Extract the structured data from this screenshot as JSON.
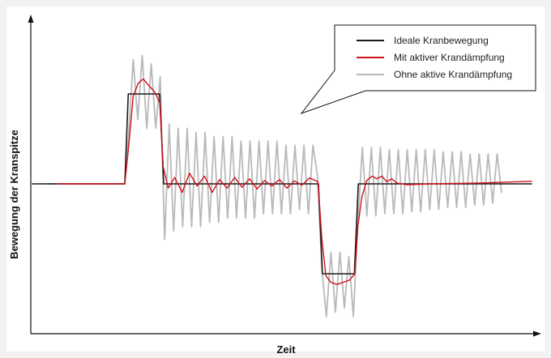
{
  "chart_data": {
    "type": "line",
    "title": "",
    "xlabel": "Zeit",
    "ylabel": "Bewegung der Kranspitze",
    "xlim": [
      0,
      100
    ],
    "ylim": [
      -3.5,
      3.5
    ],
    "grid": false,
    "legend_position": "top-right",
    "series": [
      {
        "name": "Ideale Kranbewegung",
        "color": "#1a1a1a",
        "x": [
          0,
          18.5,
          19.2,
          25.5,
          26.3,
          57.3,
          58.1,
          64.5,
          65.3,
          100
        ],
        "y": [
          0,
          0,
          2.1,
          2.1,
          0,
          0,
          -2.1,
          -2.1,
          0,
          0
        ]
      },
      {
        "name": "Mit aktiver Krandämpfung",
        "color": "#d0111b",
        "x": [
          5,
          18.5,
          19.3,
          20.2,
          21.2,
          22.2,
          23.3,
          24.5,
          25.5,
          26.2,
          27.2,
          28.5,
          30,
          31.5,
          33,
          34.5,
          36,
          37.5,
          39,
          40.5,
          42,
          43.5,
          45,
          46.5,
          48,
          49.5,
          51,
          52.5,
          54,
          55.5,
          57.2,
          58,
          58.8,
          59.8,
          61,
          62.2,
          63.5,
          64.6,
          65.2,
          66,
          67,
          68,
          69,
          70,
          71,
          72,
          73,
          75,
          80,
          90,
          100
        ],
        "y": [
          0,
          0,
          0.9,
          2.05,
          2.35,
          2.45,
          2.3,
          2.15,
          1.9,
          0.4,
          -0.1,
          0.15,
          -0.2,
          0.25,
          -0.05,
          0.18,
          -0.2,
          0.1,
          -0.1,
          0.15,
          -0.08,
          0.12,
          -0.12,
          0.08,
          -0.05,
          0.1,
          -0.1,
          0.07,
          -0.03,
          0.14,
          0.05,
          -1.3,
          -2.15,
          -2.3,
          -2.35,
          -2.3,
          -2.25,
          -2.1,
          -1.0,
          -0.3,
          0.08,
          0.18,
          0.12,
          0.18,
          0.05,
          0.12,
          0.02,
          -0.02,
          0.0,
          0.02,
          0.06
        ]
      },
      {
        "name": "Ohne aktive Krandämpfung",
        "color": "#b9b9b9",
        "x": [
          3,
          18.5,
          19.3,
          20.2,
          21.1,
          22,
          22.9,
          23.8,
          24.7,
          25.6,
          26.5,
          27.4,
          28.3,
          29.2,
          30.1,
          31,
          31.9,
          32.8,
          33.7,
          34.6,
          35.5,
          36.4,
          37.3,
          38.2,
          39.1,
          40,
          40.9,
          41.8,
          42.7,
          43.6,
          44.5,
          45.4,
          46.3,
          47.2,
          48.1,
          49,
          49.9,
          50.8,
          51.7,
          52.6,
          53.5,
          54.4,
          55.3,
          56.2,
          57.1,
          58,
          58.9,
          59.8,
          60.7,
          61.6,
          62.5,
          63.4,
          64.3,
          65.2,
          66.1,
          67,
          67.9,
          68.8,
          69.7,
          70.6,
          71.5,
          72.4,
          73.3,
          74.2,
          75.1,
          76,
          76.9,
          77.8,
          78.7,
          79.6,
          80.5,
          81.4,
          82.3,
          83.2,
          84.1,
          85,
          85.9,
          86.8,
          87.7,
          88.6,
          89.5,
          90.4,
          91.3,
          92.2,
          93.1,
          94
        ],
        "y": [
          0,
          0,
          1.2,
          2.9,
          1.5,
          3.0,
          1.3,
          2.8,
          1.3,
          2.5,
          -1.3,
          1.4,
          -1.1,
          1.3,
          -1.0,
          1.3,
          -1.0,
          1.2,
          -1.0,
          1.2,
          -0.9,
          1.1,
          -0.9,
          1.1,
          -0.8,
          1.1,
          -0.8,
          1.0,
          -0.8,
          1.0,
          -0.8,
          1.0,
          -0.7,
          1.0,
          -0.7,
          1.0,
          -0.7,
          0.9,
          -0.7,
          0.9,
          -0.6,
          0.9,
          -0.7,
          0.9,
          0.2,
          -2.0,
          -3.1,
          -1.6,
          -3.0,
          -1.6,
          -2.9,
          -1.7,
          -3.1,
          -0.9,
          0.85,
          -0.75,
          0.85,
          -0.75,
          0.85,
          -0.7,
          0.8,
          -0.7,
          0.8,
          -0.7,
          0.8,
          -0.65,
          0.8,
          -0.65,
          0.8,
          -0.6,
          0.8,
          -0.6,
          0.75,
          -0.55,
          0.75,
          -0.55,
          0.75,
          -0.55,
          0.7,
          -0.5,
          0.7,
          -0.5,
          0.7,
          -0.45,
          0.7,
          -0.2
        ]
      }
    ]
  }
}
